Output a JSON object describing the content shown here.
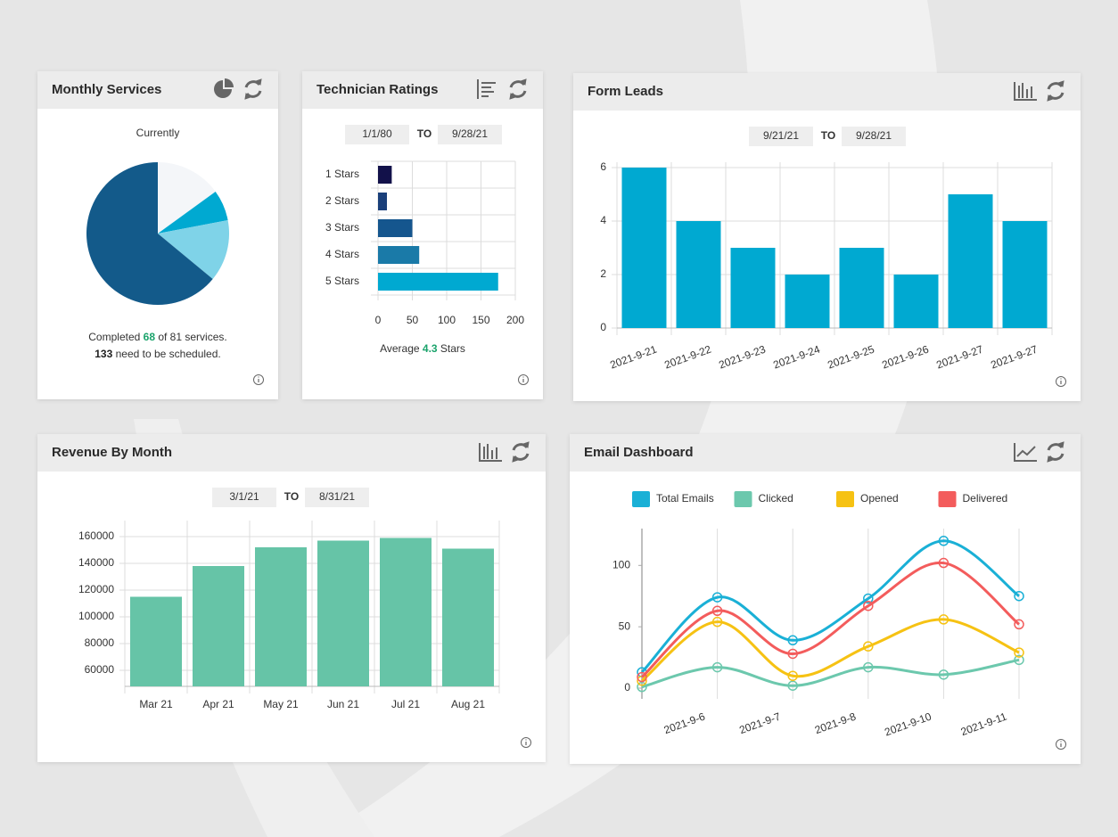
{
  "chart_data": [
    {
      "type": "pie",
      "title": "Monthly Services",
      "subtitle": "Currently",
      "values": [
        15,
        7,
        14,
        64
      ],
      "colors": [
        "#f4f6f9",
        "#00a9d1",
        "#7fd3e8",
        "#135a8a"
      ],
      "summary": [
        "Completed",
        "68",
        "of 81 services.",
        "133",
        "need to be scheduled."
      ]
    },
    {
      "type": "barh",
      "title": "Technician Ratings",
      "date_from": "1/1/80",
      "range_separator": "TO",
      "date_to": "9/28/21",
      "categories": [
        "1 Stars",
        "2 Stars",
        "3 Stars",
        "4 Stars",
        "5 Stars"
      ],
      "values": [
        20,
        13,
        50,
        60,
        175
      ],
      "colors": [
        "#12114a",
        "#1a3f7a",
        "#15568e",
        "#1a7aa8",
        "#00a9d1"
      ],
      "xlim": [
        0,
        200
      ],
      "xticks": [
        0,
        50,
        100,
        150,
        200
      ],
      "grid": true,
      "summary": [
        "Average",
        "4.3",
        "Stars"
      ]
    },
    {
      "type": "bar",
      "title": "Form Leads",
      "date_from": "9/21/21",
      "range_separator": "TO",
      "date_to": "9/28/21",
      "categories": [
        "2021-9-21",
        "2021-9-22",
        "2021-9-23",
        "2021-9-24",
        "2021-9-25",
        "2021-9-26",
        "2021-9-27",
        "2021-9-27"
      ],
      "values": [
        6,
        4,
        3,
        2,
        3,
        2,
        5,
        4
      ],
      "color": "#00a9d1",
      "ylim": [
        0,
        6
      ],
      "yticks": [
        0,
        2,
        4,
        6
      ],
      "grid": true
    },
    {
      "type": "bar",
      "title": "Revenue By Month",
      "date_from": "3/1/21",
      "range_separator": "TO",
      "date_to": "8/31/21",
      "categories": [
        "Mar 21",
        "Apr 21",
        "May 21",
        "Jun 21",
        "Jul 21",
        "Aug 21"
      ],
      "values": [
        115000,
        138000,
        152000,
        157000,
        159000,
        151000
      ],
      "color": "#66c4a7",
      "ylim": [
        48000,
        168000
      ],
      "yticks": [
        60000,
        80000,
        100000,
        120000,
        140000,
        160000
      ],
      "grid": true
    },
    {
      "type": "line",
      "title": "Email Dashboard",
      "categories": [
        null,
        "2021-9-6",
        "2021-9-7",
        "2021-9-8",
        "2021-9-10",
        "2021-9-11"
      ],
      "series": [
        {
          "name": "Total Emails",
          "color": "#1ab0d6",
          "values": [
            13,
            74,
            39,
            73,
            120,
            75
          ]
        },
        {
          "name": "Clicked",
          "color": "#6cc8ad",
          "values": [
            1,
            17,
            2,
            17,
            11,
            23
          ]
        },
        {
          "name": "Opened",
          "color": "#f6c213",
          "values": [
            6,
            54,
            10,
            34,
            56,
            29
          ]
        },
        {
          "name": "Delivered",
          "color": "#f35c5c",
          "values": [
            9,
            63,
            28,
            67,
            102,
            52
          ]
        }
      ],
      "ylim": [
        0,
        130
      ],
      "yticks": [
        0,
        50,
        100
      ],
      "grid": true,
      "legend": "top"
    }
  ]
}
